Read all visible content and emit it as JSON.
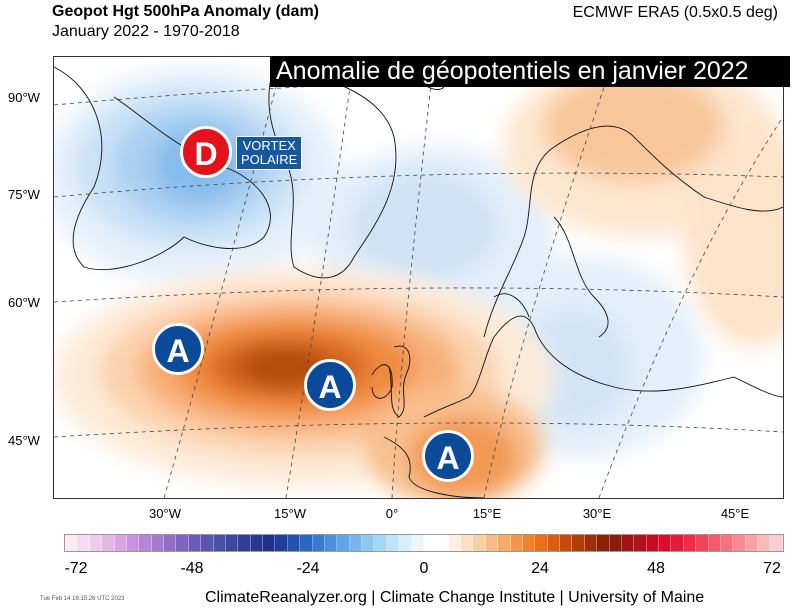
{
  "header": {
    "title": "Geopot Hgt 500hPa Anomaly (dam)",
    "subtitle": "January 2022 - 1970-2018",
    "dataset": "ECMWF ERA5 (0.5x0.5 deg)"
  },
  "overlay_title": "Anomalie de géopotentiels en janvier 2022",
  "lat_labels": [
    "90°W",
    "75°W",
    "60°W",
    "45°W"
  ],
  "lon_labels": [
    "30°W",
    "15°W",
    "0°",
    "15°E",
    "30°E",
    "45°E"
  ],
  "markers": {
    "high_letter": "A",
    "low_letter": "D",
    "vortex_line1": "VORTEX",
    "vortex_line2": "POLAIRE"
  },
  "colorbar": {
    "labels": [
      "-72",
      "-48",
      "-24",
      "0",
      "24",
      "48",
      "72"
    ],
    "colors": [
      "#fbe9f4",
      "#f6dcef",
      "#efcbea",
      "#e5b7e5",
      "#d9a4e0",
      "#c993dc",
      "#b885d6",
      "#a679cf",
      "#936dc8",
      "#8064c0",
      "#6c5cb8",
      "#5a56b0",
      "#4a50a8",
      "#3c48a0",
      "#313f98",
      "#283790",
      "#21308a",
      "#1e3d9e",
      "#2451b3",
      "#2c66c4",
      "#3a7bd2",
      "#4b90dd",
      "#5ea4e6",
      "#74b7ec",
      "#8cc8f1",
      "#a4d6f5",
      "#bee3f8",
      "#d6eefa",
      "#ebf6fd",
      "#ffffff",
      "#ffffff",
      "#fdf0e2",
      "#fbe0c5",
      "#f9cfa6",
      "#f7bd87",
      "#f5aa68",
      "#f3964a",
      "#f0822e",
      "#ec6e16",
      "#e05c0b",
      "#cc4a07",
      "#b63a05",
      "#a02c05",
      "#8a2005",
      "#8e1b0b",
      "#a01512",
      "#b3101a",
      "#c70d22",
      "#da0d2c",
      "#e81a39",
      "#ef2d47",
      "#f24357",
      "#f55a68",
      "#f7727b",
      "#f88a90",
      "#f9a2a6",
      "#fababc",
      "#fbcfd1"
    ]
  },
  "footer": {
    "timestamp": "Tue Feb 14 16:15:26 UTC 2023",
    "credits": "ClimateReanalyzer.org | Climate Change Institute | University of Maine"
  }
}
